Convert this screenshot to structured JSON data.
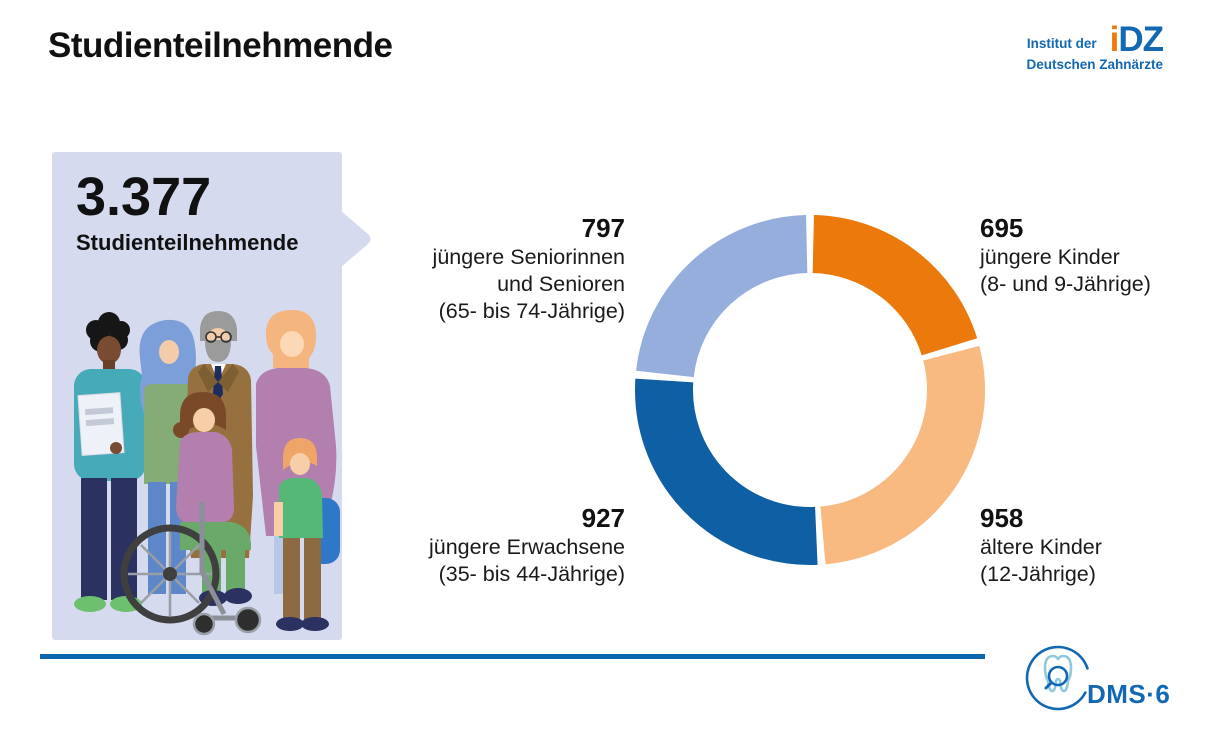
{
  "header": {
    "title": "Studienteilnehmende",
    "idz_logo": {
      "pre_text": "Institut der",
      "sub_text": "Deutschen Zahnärzte",
      "mark_i": "i",
      "mark_dz": "DZ",
      "blue": "#1268B2",
      "orange": "#F0790A"
    }
  },
  "callout": {
    "number": "3.377",
    "label": "Studienteilnehmende",
    "background": "#D5DAEE"
  },
  "chart_data": {
    "type": "donut",
    "title": "Studienteilnehmende",
    "total": 3377,
    "total_display": "3.377",
    "start_angle_deg": 0,
    "direction": "clockwise",
    "outer_radius_px": 175,
    "inner_radius_px": 117,
    "segment_gap_deg": 1.3,
    "segments": [
      {
        "name": "jüngere Kinder",
        "value": 695,
        "color": "#EB790B",
        "number": "695",
        "lines": [
          "jüngere Kinder",
          "(8- und 9-Jährige)"
        ],
        "label_position": "top-right"
      },
      {
        "name": "ältere Kinder",
        "value": 958,
        "color": "#F8BA80",
        "number": "958",
        "lines": [
          "ältere Kinder",
          "(12-Jährige)"
        ],
        "label_position": "bottom-right"
      },
      {
        "name": "jüngere Erwachsene",
        "value": 927,
        "color": "#0F5FA4",
        "number": "927",
        "lines": [
          "jüngere Erwachsene",
          "(35- bis 44-Jährige)"
        ],
        "label_position": "bottom-left"
      },
      {
        "name": "jüngere Seniorinnen und Senioren",
        "value": 797,
        "color": "#96AEDC",
        "number": "797",
        "lines": [
          "jüngere Seniorinnen",
          "und Senioren",
          "(65- bis 74-Jährige)"
        ],
        "label_position": "top-left"
      }
    ]
  },
  "footer": {
    "rule_color": "#0E67AE",
    "dms_text": "DMS·6",
    "dms_blue": "#1268B2",
    "dms_light_blue": "#8EC9E0"
  }
}
